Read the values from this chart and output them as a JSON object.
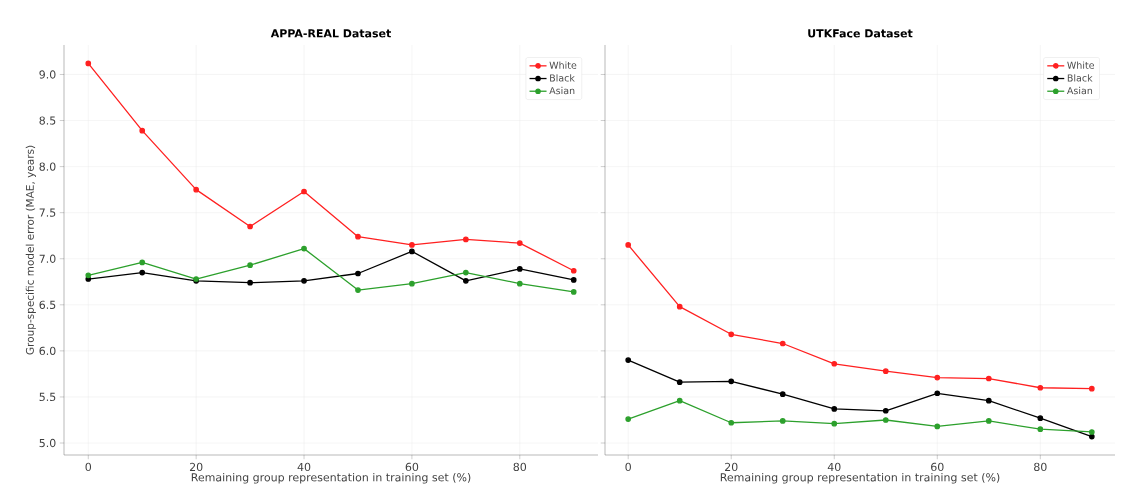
{
  "chart_data": [
    {
      "type": "line",
      "title": "APPA-REAL Dataset",
      "xlabel": "Remaining group representation in training set (%)",
      "ylabel": "Group-specific model error (MAE, years)",
      "x": [
        0,
        10,
        20,
        30,
        40,
        50,
        60,
        70,
        80,
        90
      ],
      "series": [
        {
          "name": "White",
          "color": "#ff2020",
          "values": [
            9.12,
            8.39,
            7.75,
            7.35,
            7.73,
            7.24,
            7.15,
            7.21,
            7.17,
            6.87
          ]
        },
        {
          "name": "Black",
          "color": "#000000",
          "values": [
            6.78,
            6.85,
            6.76,
            6.74,
            6.76,
            6.84,
            7.08,
            6.76,
            6.89,
            6.77
          ]
        },
        {
          "name": "Asian",
          "color": "#2ca02c",
          "values": [
            6.82,
            6.96,
            6.78,
            6.93,
            7.11,
            6.66,
            6.73,
            6.85,
            6.73,
            6.64
          ]
        }
      ],
      "xlim": [
        -4.5,
        94.5
      ],
      "ylim": [
        4.87,
        9.32
      ],
      "xticks": [
        0,
        20,
        40,
        60,
        80
      ],
      "yticks": [
        {
          "value": 5,
          "label": "5.0"
        },
        5.5,
        {
          "value": 6,
          "label": "6.0"
        },
        6.5,
        {
          "value": 7,
          "label": "7.0"
        },
        7.5,
        {
          "value": 8,
          "label": "8.0"
        },
        8.5,
        {
          "value": 9,
          "label": "9.0"
        }
      ],
      "grid": true,
      "legend": "top right",
      "marker": "circle",
      "line_style": "solid"
    },
    {
      "type": "line",
      "title": "UTKFace Dataset",
      "xlabel": "Remaining group representation in training set (%)",
      "x": [
        0,
        10,
        20,
        30,
        40,
        50,
        60,
        70,
        80,
        90
      ],
      "series": [
        {
          "name": "White",
          "color": "#ff2020",
          "values": [
            7.15,
            6.48,
            6.18,
            6.08,
            5.86,
            5.78,
            5.71,
            5.7,
            5.6,
            5.59
          ]
        },
        {
          "name": "Black",
          "color": "#000000",
          "values": [
            5.9,
            5.66,
            5.67,
            5.53,
            5.37,
            5.35,
            5.54,
            5.46,
            5.27,
            5.07
          ]
        },
        {
          "name": "Asian",
          "color": "#2ca02c",
          "values": [
            5.26,
            5.46,
            5.22,
            5.24,
            5.21,
            5.25,
            5.18,
            5.24,
            5.15,
            5.12
          ]
        }
      ],
      "xlim": [
        -4.5,
        94.5
      ],
      "ylim": [
        4.87,
        9.32
      ],
      "xticks": [
        0,
        20,
        40,
        60,
        80
      ],
      "yticks": [
        5,
        5.5,
        6,
        6.5,
        7,
        7.5,
        8,
        8.5,
        9
      ],
      "tick_labels": "x",
      "grid": true,
      "legend": "top right",
      "marker": "circle",
      "line_style": "solid"
    }
  ]
}
